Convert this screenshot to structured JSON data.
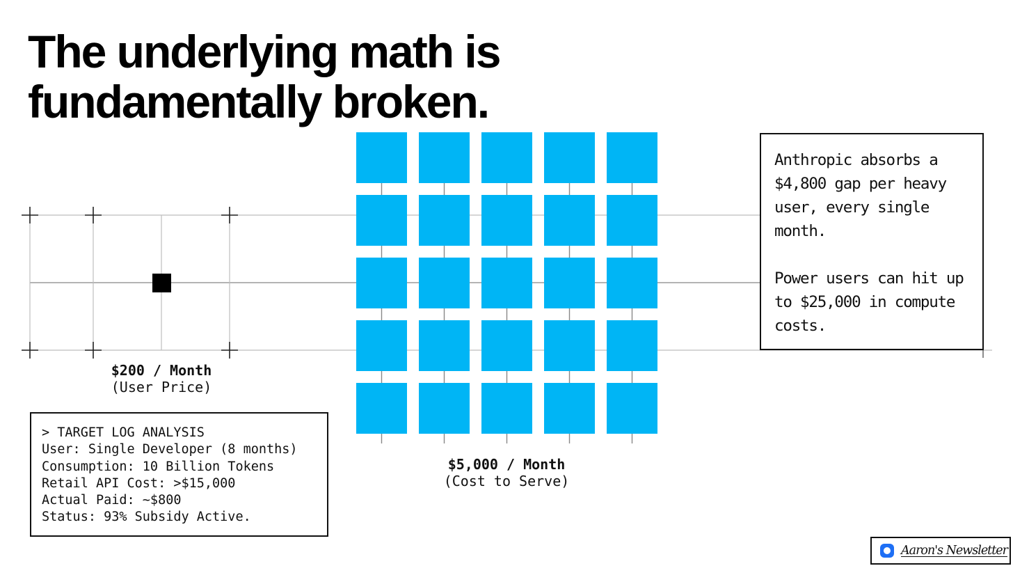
{
  "title": {
    "line1": "The underlying math is",
    "line2": "fundamentally broken."
  },
  "user_price": {
    "amount": "$200 / Month",
    "label": "(User Price)",
    "unit_count": 1
  },
  "cost_to_serve": {
    "amount": "$5,000 / Month",
    "label": "(Cost to Serve)",
    "rows": 5,
    "cols": 5
  },
  "log": {
    "lines": [
      "> TARGET LOG ANALYSIS",
      "User: Single Developer (8 months)",
      "Consumption: 10 Billion Tokens",
      "Retail API Cost: >$15,000",
      "Actual Paid: ~$800",
      "Status: 93% Subsidy Active."
    ]
  },
  "callout": {
    "para1": "Anthropic absorbs a $4,800 gap per heavy user, every single month.",
    "para2": "Power users can hit up to $25,000 in compute costs."
  },
  "badge": {
    "text": "Aaron's Newsletter",
    "icon": "newsletter-logo-icon"
  },
  "colors": {
    "accent": "#00b5f5",
    "ink": "#000000",
    "grid": "#b8b8b8",
    "badge_icon": "#1e6ff5"
  }
}
